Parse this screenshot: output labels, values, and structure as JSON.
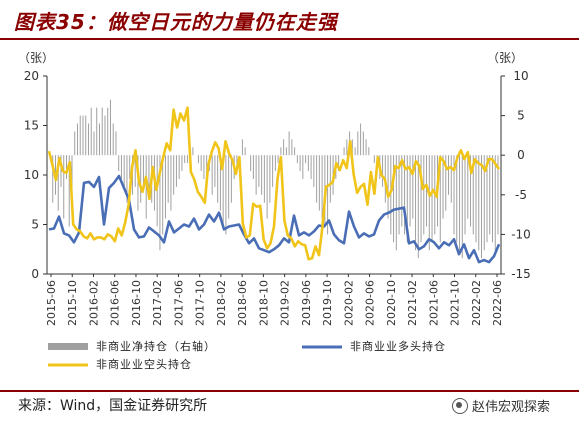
{
  "header": {
    "title": "图表35：做空日元的力量仍在走强"
  },
  "footer": {
    "source": "来源：Wind，国金证券研究所",
    "watermark": "赵伟宏观探索"
  },
  "colors": {
    "title": "#8b0000",
    "long": "#4a6eb5",
    "short": "#f0c419",
    "net": "#a0a0a0"
  },
  "chart_data": {
    "type": "line",
    "left_axis": {
      "unit": "（张）",
      "ylim": [
        0,
        20
      ],
      "ticks": [
        "0",
        "5",
        "10",
        "15",
        "20"
      ]
    },
    "right_axis": {
      "unit": "（张）",
      "ylim": [
        -15,
        10
      ],
      "ticks": [
        "-15",
        "-10",
        "-5",
        "0",
        "5",
        "10"
      ]
    },
    "x_labels": [
      "2015-06",
      "2015-10",
      "2016-02",
      "2016-06",
      "2016-10",
      "2017-02",
      "2017-06",
      "2017-10",
      "2018-02",
      "2018-06",
      "2018-10",
      "2019-02",
      "2019-06",
      "2019-10",
      "2020-02",
      "2020-06",
      "2020-10",
      "2021-02",
      "2021-06",
      "2021-10",
      "2022-02",
      "2022-06"
    ],
    "legend": [
      "非商业净持仓（右轴）",
      "非商业业多头持仓",
      "非商业业空头持仓"
    ],
    "series": [
      {
        "name": "非商业净持仓（右轴）",
        "axis": "right",
        "type": "bar",
        "values": [
          0,
          -6,
          -5,
          -7,
          -4,
          -8,
          -3,
          -9,
          -6,
          3,
          4,
          5,
          5,
          5,
          4,
          6,
          3,
          6,
          4,
          6,
          5,
          6,
          7,
          4,
          3,
          -2,
          -3,
          -4,
          -6,
          -3,
          -5,
          -4,
          -7,
          -6,
          -4,
          -8,
          -5,
          -6,
          -7,
          -9,
          -12,
          -10,
          -8,
          -6,
          -7,
          -5,
          -4,
          -3,
          -2,
          -1,
          -1,
          0,
          1,
          0,
          -1,
          -2,
          -3,
          -3,
          -2,
          -5,
          -4,
          -6,
          -7,
          -9,
          -10,
          -8,
          -6,
          -3,
          -2,
          0,
          2,
          1,
          0,
          -2,
          -3,
          -5,
          -4,
          -5,
          -6,
          -8,
          -6,
          -4,
          -2,
          -1,
          1,
          2,
          1,
          3,
          2,
          1,
          -1,
          -2,
          -3,
          -1,
          -2,
          -3,
          -4,
          -6,
          -7,
          -8,
          -9,
          -10,
          -6,
          -5,
          -3,
          -2,
          0,
          1,
          2,
          3,
          2,
          1,
          3,
          4,
          3,
          2,
          1,
          0,
          -1,
          -2,
          -3,
          -4,
          -6,
          -8,
          -10,
          -11,
          -12,
          -10,
          -9,
          -10,
          -11,
          -9,
          -8,
          -12,
          -13,
          -11,
          -10,
          -9,
          -12,
          -11,
          -10,
          -9,
          -11,
          -8,
          -7,
          -5,
          -6,
          -10,
          -11,
          -12,
          -13,
          -10,
          -8,
          -9,
          -10,
          -11,
          -12,
          -13,
          -12,
          -11,
          -10,
          -11,
          -12,
          -10
        ]
      },
      {
        "name": "非商业业多头持仓",
        "axis": "left",
        "type": "line",
        "values": [
          4.5,
          4.6,
          5.8,
          4.1,
          3.9,
          3.2,
          4.2,
          9.2,
          9.3,
          8.8,
          9.8,
          5.0,
          8.7,
          9.2,
          9.9,
          8.7,
          7.5,
          4.5,
          3.7,
          3.8,
          4.7,
          4.3,
          3.9,
          3.2,
          5.3,
          4.2,
          4.6,
          5.0,
          4.8,
          5.6,
          4.5,
          5.0,
          6.0,
          5.3,
          6.2,
          4.5,
          4.8,
          4.9,
          5.0,
          4.0,
          3.1,
          3.6,
          2.6,
          2.4,
          2.2,
          2.5,
          2.9,
          3.6,
          3.2,
          5.9,
          3.9,
          4.2,
          3.9,
          4.3,
          4.9,
          4.8,
          5.4,
          4.0,
          3.4,
          3.1,
          6.3,
          4.8,
          3.7,
          4.1,
          3.8,
          4.0,
          5.4,
          6.0,
          6.2,
          6.5,
          6.6,
          6.7,
          3.1,
          3.3,
          2.5,
          2.8,
          3.5,
          3.2,
          2.6,
          3.2,
          2.9,
          3.5,
          2.0,
          3.0,
          1.6,
          2.4,
          1.2,
          1.4,
          1.2,
          1.8,
          3.0
        ]
      },
      {
        "name": "非商业业空头持仓",
        "axis": "left",
        "type": "line",
        "values": [
          12.4,
          11.0,
          9.5,
          11.7,
          10.4,
          10.2,
          11.3,
          5.0,
          4.5,
          4.3,
          3.8,
          3.6,
          4.1,
          3.5,
          3.7,
          3.7,
          3.5,
          4.0,
          3.8,
          3.3,
          4.6,
          3.9,
          5.2,
          7.0,
          10.8,
          12.5,
          9.3,
          8.3,
          9.8,
          7.6,
          10.8,
          8.5,
          10.2,
          11.8,
          13.2,
          12.5,
          16.6,
          14.8,
          16.2,
          15.5,
          16.8,
          10.3,
          9.5,
          8.3,
          7.8,
          7.2,
          11.0,
          12.3,
          13.3,
          12.7,
          10.6,
          13.4,
          12.2,
          11.5,
          10.1,
          11.8,
          5.1,
          3.7,
          3.9,
          7.1,
          6.8,
          6.9,
          3.5,
          2.6,
          3.1,
          4.8,
          9.6,
          11.8,
          5.4,
          3.9,
          3.6,
          2.8,
          3.3,
          3.0,
          2.9,
          1.5,
          1.6,
          2.8,
          1.9,
          4.8,
          8.8,
          9.0,
          9.3,
          11.2,
          10.5,
          11.5,
          10.7,
          13.4,
          10.1,
          8.2,
          8.8,
          9.1,
          7.0,
          10.3,
          8.1,
          11.8,
          10.0,
          9.6,
          7.8,
          8.5,
          10.9,
          10.7,
          11.5,
          10.6,
          10.8,
          10.1,
          11.4,
          10.9,
          8.6,
          9.0,
          7.9,
          8.5,
          7.8,
          11.8,
          11.4,
          10.6,
          10.8,
          10.5,
          11.8,
          12.5,
          11.6,
          12.3,
          10.2,
          11.6,
          11.2,
          11.0,
          10.4,
          11.6,
          11.6,
          11.1,
          10.6
        ]
      }
    ]
  }
}
